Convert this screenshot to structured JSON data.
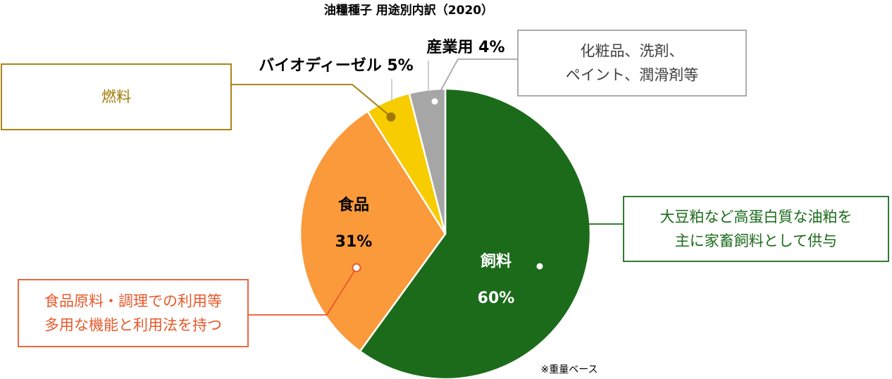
{
  "chart_data": {
    "type": "pie",
    "title": "油糧種子 用途別内訳（2020）",
    "categories": [
      "飼料",
      "食品",
      "バイオディーゼル",
      "産業用"
    ],
    "values": [
      60,
      31,
      5,
      4
    ],
    "unit": "%",
    "value_labels": [
      "60%",
      "31%",
      "5%",
      "4%"
    ],
    "inner_labels": {
      "feed": {
        "name": "飼料",
        "value": "60%"
      },
      "food": {
        "name": "食品",
        "value": "31%"
      }
    },
    "outer_labels": {
      "biodiesel": "バイオディーゼル 5%",
      "industrial": "産業用 4%"
    },
    "colors": [
      "#1b6b1b",
      "#fa9a3a",
      "#f7cc00",
      "#a6a6a6"
    ],
    "start_angle_deg": 0,
    "direction": "clockwise",
    "annotations": {
      "feed": [
        "大豆粕など高蛋白質な油粕を",
        "主に家畜飼料として供与"
      ],
      "food": [
        "食品原料・調理での利用等",
        "多用な機能と利用法を持つ"
      ],
      "biodiesel": [
        "燃料"
      ],
      "industrial": [
        "化粧品、洗剤、",
        "ペイント、潤滑剤等"
      ]
    },
    "annotation_colors": {
      "feed": "#1b6b1b",
      "food": "#e8582b",
      "biodiesel": "#a07800",
      "industrial": "#a6a6a6",
      "industrial_text": "#404040"
    },
    "note": "※重量ベース"
  }
}
